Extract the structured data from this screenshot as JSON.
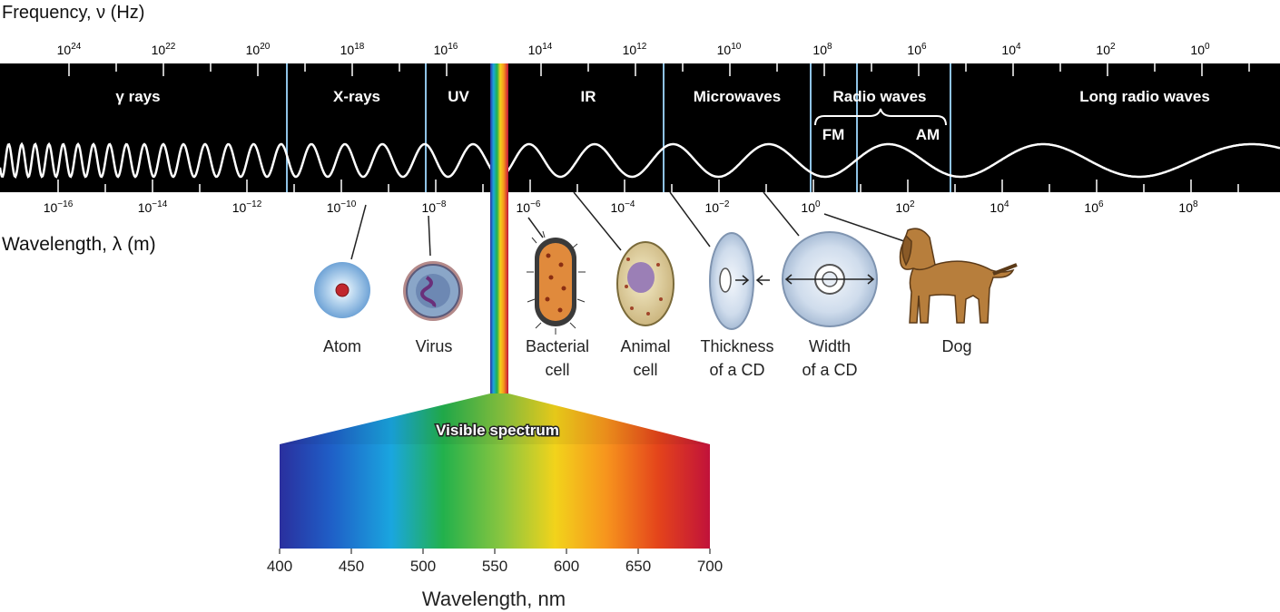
{
  "frequency_axis": {
    "label": "Frequency, ν (Hz)",
    "ticks": [
      {
        "base": "10",
        "exp": "24"
      },
      {
        "base": "10",
        "exp": "22"
      },
      {
        "base": "10",
        "exp": "20"
      },
      {
        "base": "10",
        "exp": "18"
      },
      {
        "base": "10",
        "exp": "16"
      },
      {
        "base": "10",
        "exp": "14"
      },
      {
        "base": "10",
        "exp": "12"
      },
      {
        "base": "10",
        "exp": "10"
      },
      {
        "base": "10",
        "exp": "8"
      },
      {
        "base": "10",
        "exp": "6"
      },
      {
        "base": "10",
        "exp": "4"
      },
      {
        "base": "10",
        "exp": "2"
      },
      {
        "base": "10",
        "exp": "0"
      }
    ]
  },
  "wavelength_axis": {
    "label": "Wavelength, λ (m)",
    "ticks": [
      {
        "base": "10",
        "exp": "−16"
      },
      {
        "base": "10",
        "exp": "−14"
      },
      {
        "base": "10",
        "exp": "−12"
      },
      {
        "base": "10",
        "exp": "−10"
      },
      {
        "base": "10",
        "exp": "−8"
      },
      {
        "base": "10",
        "exp": "−6"
      },
      {
        "base": "10",
        "exp": "−4"
      },
      {
        "base": "10",
        "exp": "−2"
      },
      {
        "base": "10",
        "exp": "0"
      },
      {
        "base": "10",
        "exp": "2"
      },
      {
        "base": "10",
        "exp": "4"
      },
      {
        "base": "10",
        "exp": "6"
      },
      {
        "base": "10",
        "exp": "8"
      }
    ]
  },
  "regions": {
    "gamma": "γ rays",
    "xray": "X-rays",
    "uv": "UV",
    "ir": "IR",
    "microwaves": "Microwaves",
    "radio": "Radio waves",
    "fm": "FM",
    "am": "AM",
    "long_radio": "Long radio waves"
  },
  "objects": {
    "atom": [
      "Atom"
    ],
    "virus": [
      "Virus"
    ],
    "bacterial_cell": [
      "Bacterial",
      "cell"
    ],
    "animal_cell": [
      "Animal",
      "cell"
    ],
    "cd_thickness": [
      "Thickness",
      "of a CD"
    ],
    "cd_width": [
      "Width",
      "of a CD"
    ],
    "dog": [
      "Dog"
    ]
  },
  "visible_spectrum": {
    "title": "Visible spectrum",
    "ticks": [
      "400",
      "450",
      "500",
      "550",
      "600",
      "650",
      "700"
    ],
    "xlabel": "Wavelength, nm"
  },
  "colors": {
    "band_background": "#000000",
    "divider": "#8fc3e6",
    "wave": "#ffffff"
  }
}
